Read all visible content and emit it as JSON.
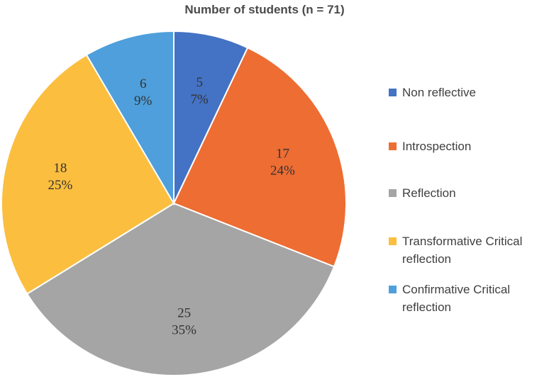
{
  "chart_data": {
    "type": "pie",
    "title": "Number of students (n = 71)",
    "slices": [
      {
        "label": "Non reflective",
        "value": 5,
        "percent": "7%",
        "color": "#4472c4"
      },
      {
        "label": "Introspection",
        "value": 17,
        "percent": "24%",
        "color": "#ed6d33"
      },
      {
        "label": "Reflection",
        "value": 25,
        "percent": "35%",
        "color": "#a5a5a5"
      },
      {
        "label": "Transformative Critical reflection",
        "value": 18,
        "percent": "25%",
        "color": "#fbbe3f"
      },
      {
        "label": "Confirmative Critical reflection",
        "value": 6,
        "percent": "9%",
        "color": "#4e9fdb"
      }
    ],
    "legend_position": "right"
  }
}
